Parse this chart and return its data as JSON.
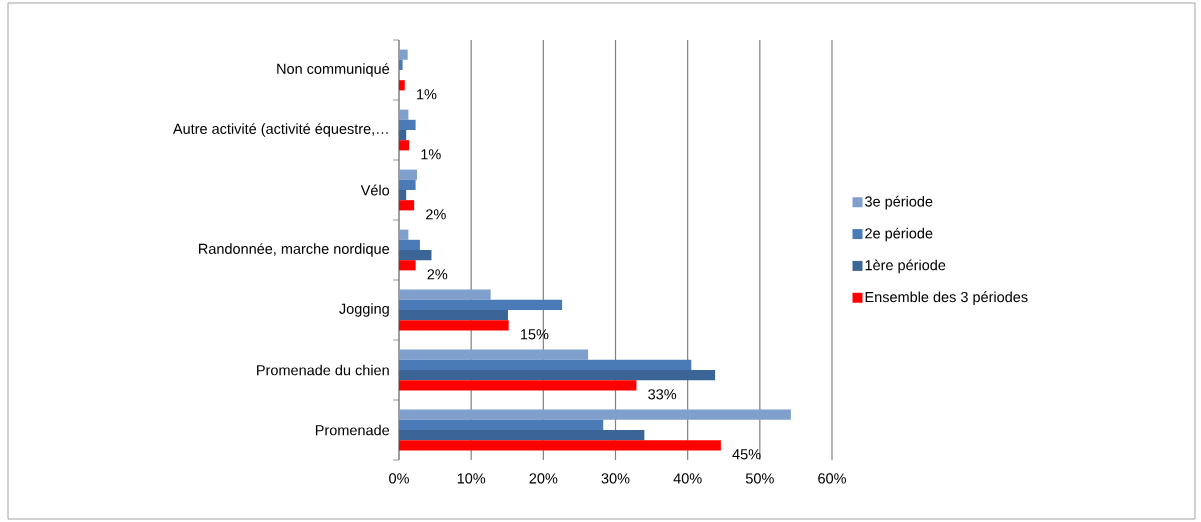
{
  "chart_data": {
    "type": "bar",
    "orientation": "horizontal",
    "categories": [
      "Non communiqué",
      "Autre activité (activité équestre,…",
      "Vélo",
      "Randonnée, marche nordique",
      "Jogging",
      "Promenade du chien",
      "Promenade"
    ],
    "series": [
      {
        "name": "3e période",
        "color": "#7f9fcc",
        "values": [
          1.2,
          1.3,
          2.5,
          1.3,
          12.7,
          26.2,
          54.3
        ]
      },
      {
        "name": "2e  période",
        "color": "#4a7bb7",
        "values": [
          0.5,
          2.3,
          2.3,
          2.9,
          22.6,
          40.5,
          28.3
        ]
      },
      {
        "name": "1ère période",
        "color": "#3b6497",
        "values": [
          0,
          1.0,
          1.0,
          4.5,
          15.1,
          43.8,
          34.0
        ]
      },
      {
        "name": "Ensemble des 3 périodes",
        "color": "#ff0000",
        "values": [
          0.8,
          1.4,
          2.1,
          2.3,
          15.2,
          32.9,
          44.6
        ],
        "value_labels": [
          "1%",
          "1%",
          "2%",
          "2%",
          "15%",
          "33%",
          "45%"
        ]
      }
    ],
    "xlim": [
      0,
      60
    ],
    "xticks": [
      {
        "value": 0,
        "label": "0%"
      },
      {
        "value": 10,
        "label": "10%"
      },
      {
        "value": 20,
        "label": "20%"
      },
      {
        "value": 30,
        "label": "30%"
      },
      {
        "value": 40,
        "label": "40%"
      },
      {
        "value": 50,
        "label": "50%"
      },
      {
        "value": 60,
        "label": "60%"
      }
    ],
    "grid": "x",
    "legend": "right"
  }
}
